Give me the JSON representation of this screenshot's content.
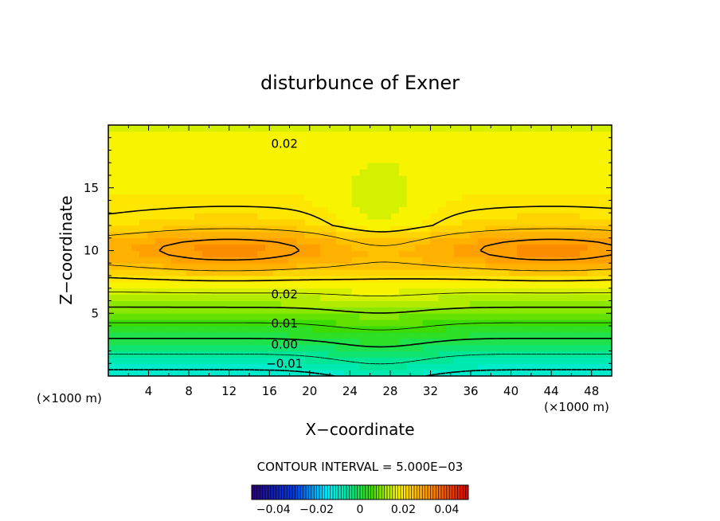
{
  "chart_data": {
    "type": "contour",
    "title": "disturbunce of Exner",
    "xlabel": "X−coordinate",
    "ylabel": "Z−coordinate",
    "x_unit_label": "(×1000 m)",
    "y_unit_label": "(×1000 m)",
    "xlim": [
      0,
      50
    ],
    "ylim": [
      0,
      20
    ],
    "x_ticks": [
      4,
      8,
      12,
      16,
      20,
      24,
      28,
      32,
      36,
      40,
      44,
      48
    ],
    "x_tick_labels": [
      "4",
      "8",
      "12",
      "16",
      "20",
      "24",
      "28",
      "32",
      "36",
      "40",
      "44",
      "48"
    ],
    "y_ticks": [
      5,
      10,
      15
    ],
    "y_tick_labels": [
      "5",
      "10",
      "15"
    ],
    "contour_interval_text": "CONTOUR INTERVAL = 5.000E−03",
    "contour_interval": 0.005,
    "contour_labels": [
      {
        "text": "0.02",
        "x": 17.5,
        "z": 18.5
      },
      {
        "text": "0.02",
        "x": 17.5,
        "z": 6.5
      },
      {
        "text": "0.01",
        "x": 17.5,
        "z": 4.2
      },
      {
        "text": "0.00",
        "x": 17.5,
        "z": 2.5
      },
      {
        "text": "−0.01",
        "x": 17.5,
        "z": 1.0
      }
    ],
    "field_features": {
      "max_centers": [
        {
          "x": 12,
          "z": 10.2,
          "value": 0.026
        },
        {
          "x": 44,
          "z": 10.2,
          "value": 0.026
        }
      ],
      "min_value_near_surface": -0.012,
      "ridge_x": 27
    },
    "colorbar": {
      "range": [
        -0.05,
        0.05
      ],
      "tick_values": [
        -0.04,
        -0.02,
        0,
        0.02,
        0.04
      ],
      "tick_labels": [
        "−0.04",
        "−0.02",
        "0",
        "0.02",
        "0.04"
      ]
    }
  }
}
